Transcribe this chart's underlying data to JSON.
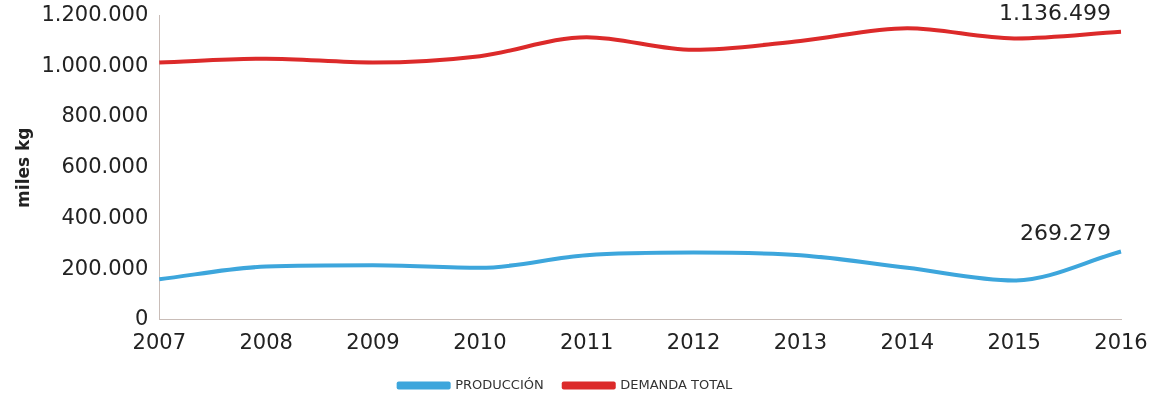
{
  "chart_data": {
    "type": "line",
    "ylabel": "miles kg",
    "categories": [
      "2007",
      "2008",
      "2009",
      "2010",
      "2011",
      "2012",
      "2013",
      "2014",
      "2015",
      "2016"
    ],
    "series": [
      {
        "name": "PRODUCCIÓN",
        "color": "#3da6dc",
        "values": [
          160000,
          210000,
          215000,
          205000,
          255000,
          265000,
          255000,
          205000,
          155000,
          269279
        ],
        "value_labels": [
          null,
          null,
          null,
          null,
          null,
          null,
          null,
          null,
          null,
          "269.279"
        ]
      },
      {
        "name": "DEMANDA TOTAL",
        "color": "#dc2a2a",
        "values": [
          1015000,
          1030000,
          1015000,
          1040000,
          1115000,
          1065000,
          1100000,
          1150000,
          1110000,
          1136499
        ],
        "value_labels": [
          null,
          null,
          null,
          null,
          null,
          null,
          null,
          null,
          null,
          "1.136.499"
        ]
      }
    ],
    "ylim": [
      0,
      1200000
    ],
    "yticks": [
      {
        "value": 0,
        "label": "0"
      },
      {
        "value": 200000,
        "label": "200.000"
      },
      {
        "value": 400000,
        "label": "400.000"
      },
      {
        "value": 600000,
        "label": "600.000"
      },
      {
        "value": 800000,
        "label": "800.000"
      },
      {
        "value": 1000000,
        "label": "1.000.000"
      },
      {
        "value": 1200000,
        "label": "1.200.000"
      }
    ],
    "grid": false,
    "legend": "bottom",
    "marker": "none",
    "line_style": "solid"
  }
}
